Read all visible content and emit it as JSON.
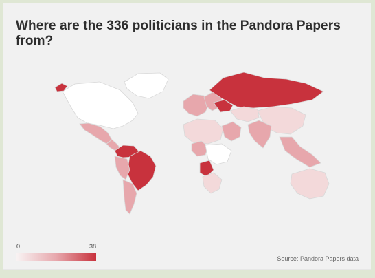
{
  "title": "Where are the 336 politicians in the Pandora Papers from?",
  "legend": {
    "min": "0",
    "max": "38"
  },
  "source": "Source: Pandora Papers data",
  "colors": {
    "background": "#f1f1f1",
    "no_data": "#ffffff",
    "low": "#f3d9da",
    "mid": "#e7a7ac",
    "high": "#c8323d"
  },
  "regions": [
    {
      "name": "greenland",
      "level": "no-data"
    },
    {
      "name": "north-america",
      "level": "no-data"
    },
    {
      "name": "mexico",
      "level": "mid"
    },
    {
      "name": "central-america",
      "level": "mid"
    },
    {
      "name": "venezuela-colombia",
      "level": "high"
    },
    {
      "name": "brazil",
      "level": "high"
    },
    {
      "name": "andean-south-america",
      "level": "mid"
    },
    {
      "name": "argentina-chile",
      "level": "mid"
    },
    {
      "name": "iceland",
      "level": "high"
    },
    {
      "name": "western-europe",
      "level": "mid"
    },
    {
      "name": "eastern-europe",
      "level": "mid"
    },
    {
      "name": "ukraine",
      "level": "high"
    },
    {
      "name": "russia",
      "level": "high"
    },
    {
      "name": "kazakhstan",
      "level": "low"
    },
    {
      "name": "china",
      "level": "low"
    },
    {
      "name": "north-africa",
      "level": "low"
    },
    {
      "name": "nigeria",
      "level": "mid"
    },
    {
      "name": "angola",
      "level": "high"
    },
    {
      "name": "southern-africa",
      "level": "low"
    },
    {
      "name": "middle-east",
      "level": "mid"
    },
    {
      "name": "south-asia",
      "level": "mid"
    },
    {
      "name": "southeast-asia",
      "level": "mid"
    },
    {
      "name": "australia",
      "level": "low"
    }
  ]
}
